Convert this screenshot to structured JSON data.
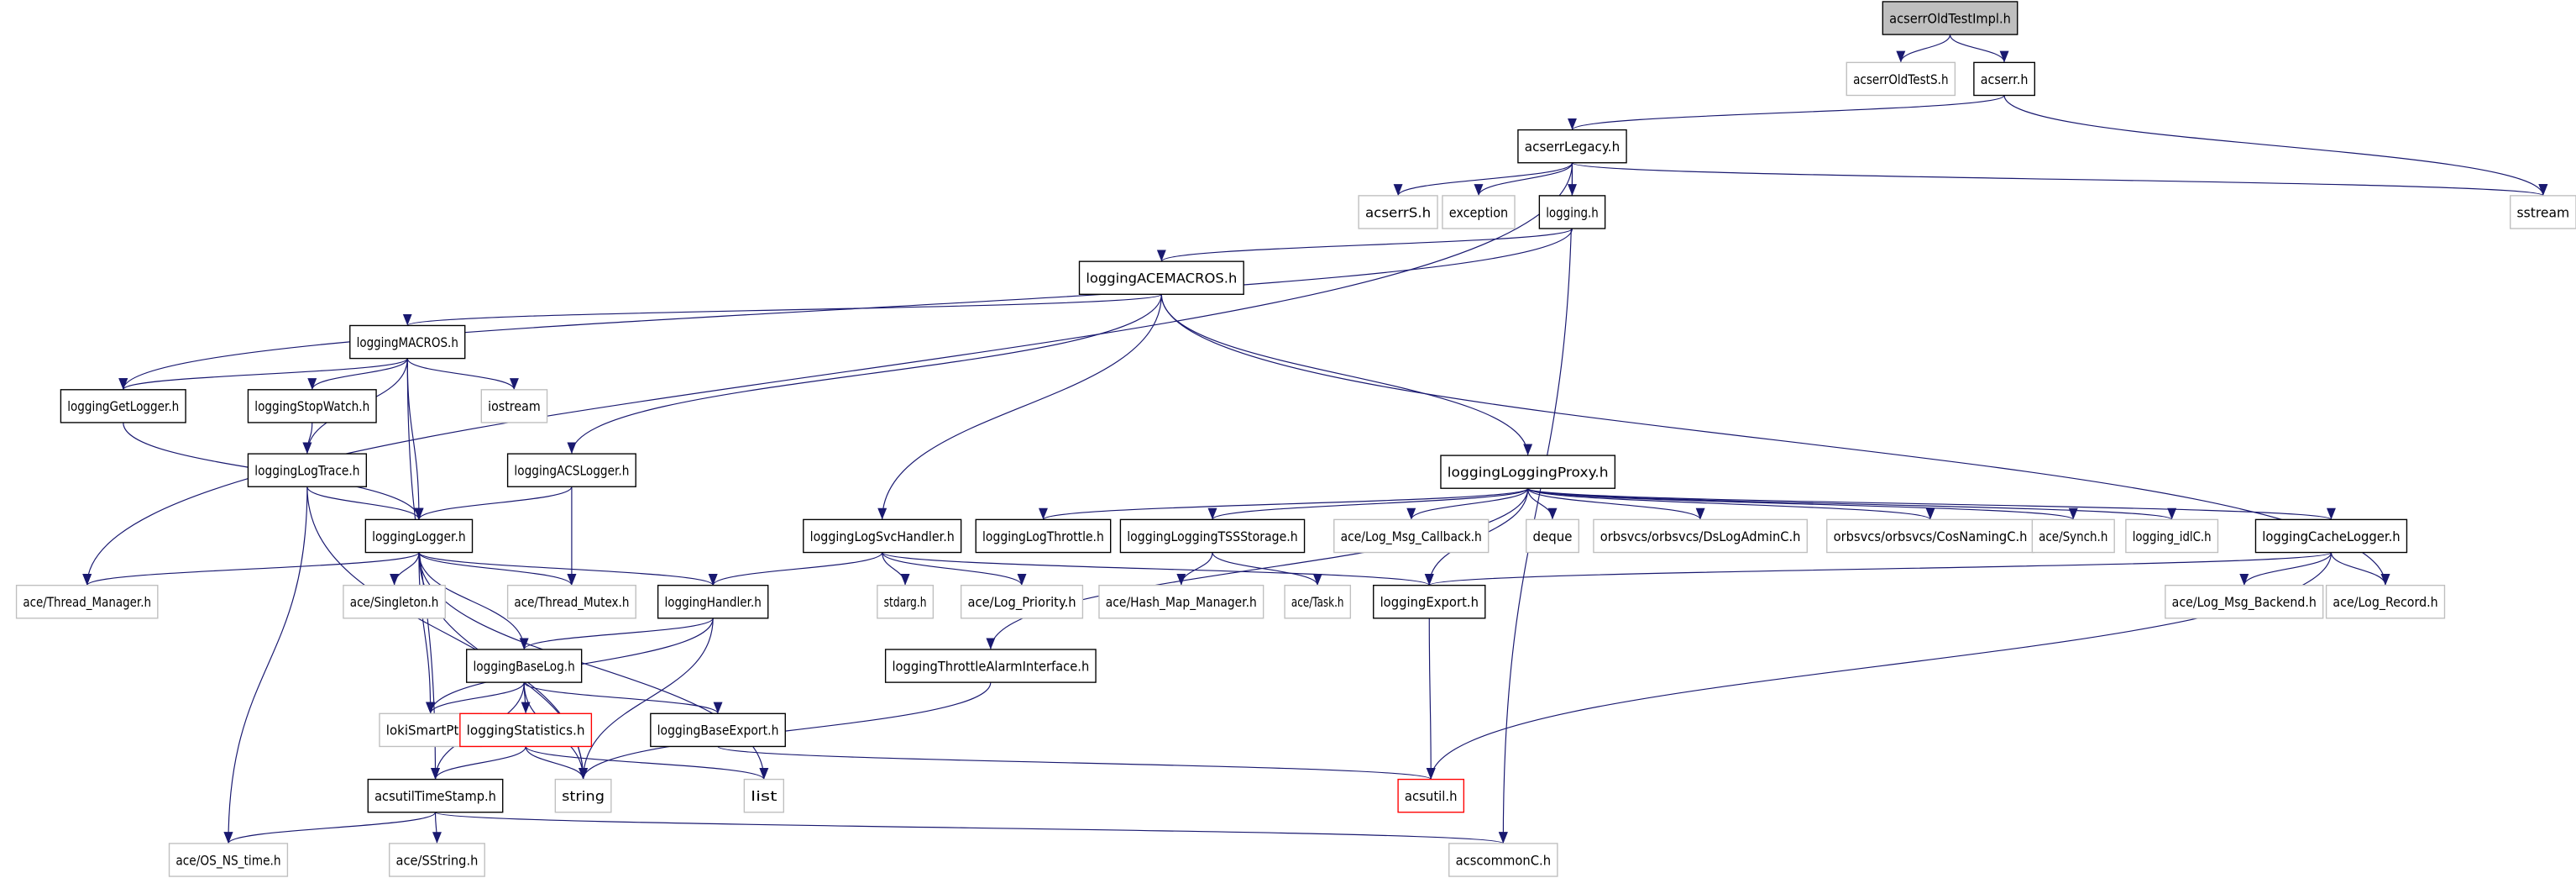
{
  "colors": {
    "edge": "#191970",
    "documented_border": "#000000",
    "undocumented_border": "#bfbfbf",
    "incomplete_border": "#ff0000",
    "root_fill": "#bfbfbf"
  },
  "nodes": [
    {
      "id": "root",
      "label": "acserrOldTestImpl.h",
      "kind": "root"
    },
    {
      "id": "acserrOldTestS",
      "label": "acserrOldTestS.h",
      "kind": "undocumented"
    },
    {
      "id": "acserr",
      "label": "acserr.h",
      "kind": "documented"
    },
    {
      "id": "acserrLegacy",
      "label": "acserrLegacy.h",
      "kind": "documented"
    },
    {
      "id": "acserrS",
      "label": "acserrS.h",
      "kind": "undocumented"
    },
    {
      "id": "exception",
      "label": "exception",
      "kind": "undocumented"
    },
    {
      "id": "logging",
      "label": "logging.h",
      "kind": "documented"
    },
    {
      "id": "sstream",
      "label": "sstream",
      "kind": "undocumented"
    },
    {
      "id": "ACEMACROS",
      "label": "loggingACEMACROS.h",
      "kind": "documented"
    },
    {
      "id": "MACROS",
      "label": "loggingMACROS.h",
      "kind": "documented"
    },
    {
      "id": "GetLogger",
      "label": "loggingGetLogger.h",
      "kind": "documented"
    },
    {
      "id": "StopWatch",
      "label": "loggingStopWatch.h",
      "kind": "documented"
    },
    {
      "id": "iostream",
      "label": "iostream",
      "kind": "undocumented"
    },
    {
      "id": "LogTrace",
      "label": "loggingLogTrace.h",
      "kind": "documented"
    },
    {
      "id": "ACSLogger",
      "label": "loggingACSLogger.h",
      "kind": "documented"
    },
    {
      "id": "LoggingProxy",
      "label": "loggingLoggingProxy.h",
      "kind": "documented"
    },
    {
      "id": "Logger",
      "label": "loggingLogger.h",
      "kind": "documented"
    },
    {
      "id": "LogSvcHandler",
      "label": "loggingLogSvcHandler.h",
      "kind": "documented"
    },
    {
      "id": "LogThrottle",
      "label": "loggingLogThrottle.h",
      "kind": "documented"
    },
    {
      "id": "TSSStorage",
      "label": "loggingLoggingTSSStorage.h",
      "kind": "documented"
    },
    {
      "id": "LogMsgCallback",
      "label": "ace/Log_Msg_Callback.h",
      "kind": "undocumented"
    },
    {
      "id": "deque",
      "label": "deque",
      "kind": "undocumented"
    },
    {
      "id": "DsLogAdminC",
      "label": "orbsvcs/orbsvcs/DsLogAdminC.h",
      "kind": "undocumented"
    },
    {
      "id": "CosNamingC",
      "label": "orbsvcs/orbsvcs/CosNamingC.h",
      "kind": "undocumented"
    },
    {
      "id": "Synch",
      "label": "ace/Synch.h",
      "kind": "undocumented"
    },
    {
      "id": "idlC",
      "label": "logging_idlC.h",
      "kind": "undocumented"
    },
    {
      "id": "CacheLogger",
      "label": "loggingCacheLogger.h",
      "kind": "documented"
    },
    {
      "id": "ThreadManager",
      "label": "ace/Thread_Manager.h",
      "kind": "undocumented"
    },
    {
      "id": "Singleton",
      "label": "ace/Singleton.h",
      "kind": "undocumented"
    },
    {
      "id": "ThreadMutex",
      "label": "ace/Thread_Mutex.h",
      "kind": "undocumented"
    },
    {
      "id": "Handler",
      "label": "loggingHandler.h",
      "kind": "documented"
    },
    {
      "id": "stdarg",
      "label": "stdarg.h",
      "kind": "undocumented"
    },
    {
      "id": "LogPriority",
      "label": "ace/Log_Priority.h",
      "kind": "undocumented"
    },
    {
      "id": "HashMap",
      "label": "ace/Hash_Map_Manager.h",
      "kind": "undocumented"
    },
    {
      "id": "Task",
      "label": "ace/Task.h",
      "kind": "undocumented"
    },
    {
      "id": "Export",
      "label": "loggingExport.h",
      "kind": "documented"
    },
    {
      "id": "LogMsgBackend",
      "label": "ace/Log_Msg_Backend.h",
      "kind": "undocumented"
    },
    {
      "id": "LogRecord",
      "label": "ace/Log_Record.h",
      "kind": "undocumented"
    },
    {
      "id": "BaseLog",
      "label": "loggingBaseLog.h",
      "kind": "documented"
    },
    {
      "id": "ThrottleAlarm",
      "label": "loggingThrottleAlarmInterface.h",
      "kind": "documented"
    },
    {
      "id": "loki",
      "label": "lokiSmartPtr.h",
      "kind": "undocumented"
    },
    {
      "id": "Statistics",
      "label": "loggingStatistics.h",
      "kind": "incomplete"
    },
    {
      "id": "BaseExport",
      "label": "loggingBaseExport.h",
      "kind": "documented"
    },
    {
      "id": "TimeStamp",
      "label": "acsutilTimeStamp.h",
      "kind": "documented"
    },
    {
      "id": "string",
      "label": "string",
      "kind": "undocumented"
    },
    {
      "id": "list",
      "label": "list",
      "kind": "undocumented"
    },
    {
      "id": "acsutil",
      "label": "acsutil.h",
      "kind": "incomplete"
    },
    {
      "id": "OSNStime",
      "label": "ace/OS_NS_time.h",
      "kind": "undocumented"
    },
    {
      "id": "SString",
      "label": "ace/SString.h",
      "kind": "undocumented"
    },
    {
      "id": "acscommonC",
      "label": "acscommonC.h",
      "kind": "undocumented"
    }
  ],
  "edges": [
    [
      "root",
      "acserrOldTestS"
    ],
    [
      "root",
      "acserr"
    ],
    [
      "acserr",
      "acserrLegacy"
    ],
    [
      "acserr",
      "sstream"
    ],
    [
      "acserrLegacy",
      "acserrS"
    ],
    [
      "acserrLegacy",
      "exception"
    ],
    [
      "acserrLegacy",
      "logging"
    ],
    [
      "acserrLegacy",
      "sstream"
    ],
    [
      "acserrLegacy",
      "ThreadManager"
    ],
    [
      "acserrLegacy",
      "acscommonC"
    ],
    [
      "logging",
      "ACEMACROS"
    ],
    [
      "logging",
      "GetLogger"
    ],
    [
      "ACEMACROS",
      "MACROS"
    ],
    [
      "ACEMACROS",
      "ACSLogger"
    ],
    [
      "ACEMACROS",
      "LogSvcHandler"
    ],
    [
      "ACEMACROS",
      "LoggingProxy"
    ],
    [
      "ACEMACROS",
      "LogRecord"
    ],
    [
      "MACROS",
      "GetLogger"
    ],
    [
      "MACROS",
      "StopWatch"
    ],
    [
      "MACROS",
      "iostream"
    ],
    [
      "MACROS",
      "LogTrace"
    ],
    [
      "MACROS",
      "Logger"
    ],
    [
      "MACROS",
      "TimeStamp"
    ],
    [
      "GetLogger",
      "Logger"
    ],
    [
      "StopWatch",
      "LogTrace"
    ],
    [
      "LogTrace",
      "Logger"
    ],
    [
      "LogTrace",
      "OSNStime"
    ],
    [
      "LogTrace",
      "string"
    ],
    [
      "ACSLogger",
      "Logger"
    ],
    [
      "ACSLogger",
      "ThreadMutex"
    ],
    [
      "Logger",
      "ThreadManager"
    ],
    [
      "Logger",
      "Singleton"
    ],
    [
      "Logger",
      "ThreadMutex"
    ],
    [
      "Logger",
      "Handler"
    ],
    [
      "Logger",
      "BaseLog"
    ],
    [
      "Logger",
      "loki"
    ],
    [
      "Logger",
      "string"
    ],
    [
      "Logger",
      "list"
    ],
    [
      "Handler",
      "BaseLog"
    ],
    [
      "Handler",
      "loki"
    ],
    [
      "Handler",
      "string"
    ],
    [
      "BaseLog",
      "loki"
    ],
    [
      "BaseLog",
      "Statistics"
    ],
    [
      "BaseLog",
      "TimeStamp"
    ],
    [
      "BaseLog",
      "string"
    ],
    [
      "BaseLog",
      "BaseExport"
    ],
    [
      "Statistics",
      "TimeStamp"
    ],
    [
      "Statistics",
      "string"
    ],
    [
      "Statistics",
      "list"
    ],
    [
      "BaseExport",
      "acsutil"
    ],
    [
      "TimeStamp",
      "OSNStime"
    ],
    [
      "TimeStamp",
      "SString"
    ],
    [
      "TimeStamp",
      "acscommonC"
    ],
    [
      "LoggingProxy",
      "LogThrottle"
    ],
    [
      "LoggingProxy",
      "TSSStorage"
    ],
    [
      "LoggingProxy",
      "LogMsgCallback"
    ],
    [
      "LoggingProxy",
      "deque"
    ],
    [
      "LoggingProxy",
      "DsLogAdminC"
    ],
    [
      "LoggingProxy",
      "CosNamingC"
    ],
    [
      "LoggingProxy",
      "Synch"
    ],
    [
      "LoggingProxy",
      "idlC"
    ],
    [
      "LoggingProxy",
      "CacheLogger"
    ],
    [
      "LoggingProxy",
      "Export"
    ],
    [
      "LoggingProxy",
      "ThrottleAlarm"
    ],
    [
      "LogSvcHandler",
      "Handler"
    ],
    [
      "LogSvcHandler",
      "stdarg"
    ],
    [
      "LogSvcHandler",
      "LogPriority"
    ],
    [
      "LogSvcHandler",
      "Export"
    ],
    [
      "TSSStorage",
      "HashMap"
    ],
    [
      "TSSStorage",
      "Task"
    ],
    [
      "CacheLogger",
      "Export"
    ],
    [
      "CacheLogger",
      "LogMsgBackend"
    ],
    [
      "CacheLogger",
      "LogRecord"
    ],
    [
      "CacheLogger",
      "acsutil"
    ],
    [
      "Export",
      "acsutil"
    ],
    [
      "ThrottleAlarm",
      "string"
    ]
  ]
}
